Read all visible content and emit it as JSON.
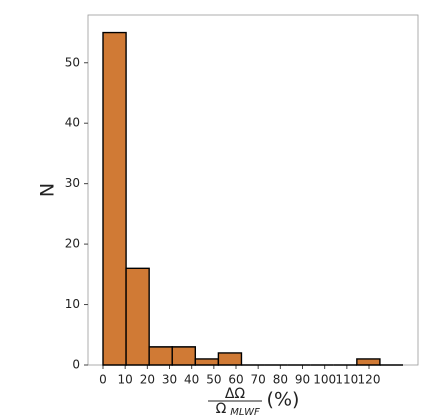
{
  "chart_data": {
    "type": "histogram",
    "bins": [
      0,
      10.41,
      20.82,
      31.23,
      41.64,
      52.05,
      62.46,
      72.87,
      83.28,
      93.69,
      104.1,
      114.51,
      124.92,
      135.33
    ],
    "values": [
      55,
      16,
      3,
      3,
      1,
      2,
      0,
      0,
      0,
      0,
      0,
      1,
      0
    ],
    "color": "#d07a35",
    "edgecolor": "#000000",
    "xlim": [
      -6.77,
      142.1
    ],
    "xticks": [
      0,
      10,
      20,
      30,
      40,
      50,
      60,
      70,
      80,
      90,
      100,
      110,
      120
    ],
    "ylim": [
      0,
      57.9
    ],
    "yticks": [
      0,
      10,
      20,
      30,
      40,
      50
    ],
    "ylabel": "N",
    "xlabel": {
      "numerator": "ΔΩ",
      "denominator": "Ω",
      "denominator_sub": "MLWF",
      "suffix": "(%)"
    },
    "grid": false
  }
}
